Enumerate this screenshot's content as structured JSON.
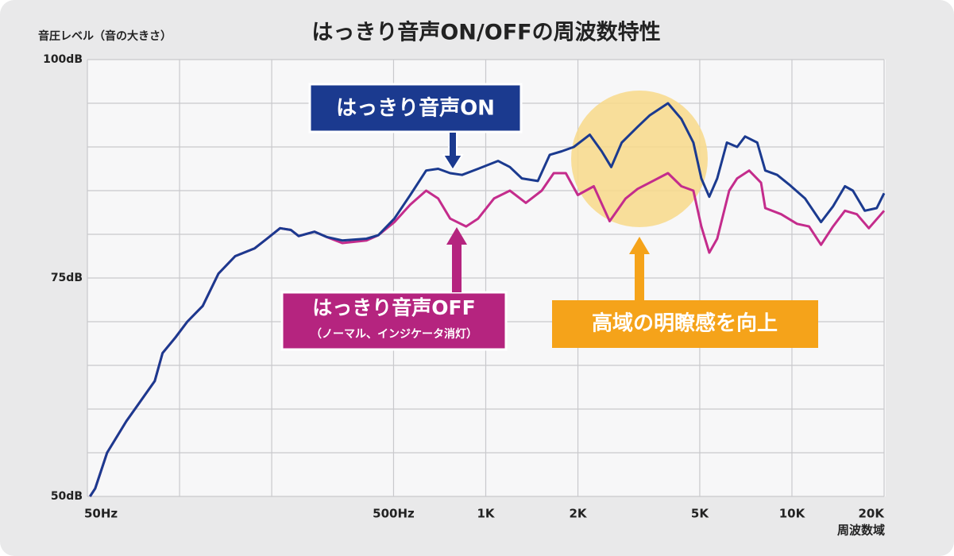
{
  "chart_data": {
    "type": "line",
    "title": "はっきり音声ON/OFFの周波数特性",
    "y_label": "音圧レベル（音の大きさ）",
    "x_label": "周波数域",
    "log_x": true,
    "grid": true,
    "xlim": [
      50,
      20000
    ],
    "ylim": [
      50,
      100
    ],
    "xticks": [
      {
        "value": 50,
        "label": "50Hz"
      },
      {
        "value": 500,
        "label": "500Hz"
      },
      {
        "value": 1000,
        "label": "1K"
      },
      {
        "value": 2000,
        "label": "2K"
      },
      {
        "value": 5000,
        "label": "5K"
      },
      {
        "value": 10000,
        "label": "10K"
      },
      {
        "value": 20000,
        "label": "20K"
      }
    ],
    "x_minor_grid": [
      100,
      200
    ],
    "yticks": [
      {
        "value": 50,
        "label": "50dB"
      },
      {
        "value": 75,
        "label": "75dB"
      },
      {
        "value": 100,
        "label": "100dB"
      }
    ],
    "y_minor_grid": [
      55,
      60,
      65,
      70,
      80,
      85,
      90,
      95
    ],
    "series": [
      {
        "name": "はっきり音声ON",
        "color": "#1b3a8f",
        "x": [
          51,
          53,
          58,
          67,
          83,
          88,
          97,
          106,
          119,
          134,
          152,
          176,
          193,
          213,
          231,
          245,
          276,
          302,
          340,
          408,
          446,
          503,
          567,
          639,
          699,
          765,
          837,
          944,
          1097,
          1199,
          1312,
          1480,
          1618,
          1770,
          1940,
          2187,
          2392,
          2570,
          2780,
          3134,
          3427,
          3936,
          4355,
          4765,
          5060,
          5370,
          5700,
          6134,
          6624,
          7031,
          7704,
          8181,
          8953,
          9790,
          11040,
          12446,
          13620,
          14895,
          15811,
          17298,
          18919,
          20000
        ],
        "values": [
          50.0,
          50.9,
          55.0,
          58.6,
          63.2,
          66.4,
          68.2,
          70.0,
          71.8,
          75.5,
          77.5,
          78.4,
          79.5,
          80.7,
          80.5,
          79.8,
          80.3,
          79.7,
          79.3,
          79.5,
          79.9,
          81.8,
          84.5,
          87.3,
          87.5,
          87.0,
          86.8,
          87.5,
          88.4,
          87.7,
          86.4,
          86.1,
          89.1,
          89.5,
          90.0,
          91.4,
          89.5,
          87.7,
          90.5,
          92.3,
          93.6,
          95.0,
          93.2,
          90.5,
          86.4,
          84.3,
          86.4,
          90.5,
          90.0,
          91.2,
          90.5,
          87.3,
          86.8,
          85.7,
          84.1,
          81.4,
          83.2,
          85.5,
          85.0,
          82.7,
          83.0,
          84.7
        ]
      },
      {
        "name": "はっきり音声OFF",
        "sublabel": "（ノーマル、インジケータ消灯）",
        "color": "#c42c8c",
        "x": [
          51,
          53,
          58,
          67,
          83,
          88,
          97,
          106,
          119,
          134,
          152,
          176,
          193,
          213,
          231,
          245,
          276,
          302,
          340,
          408,
          446,
          503,
          567,
          639,
          699,
          765,
          863,
          944,
          1064,
          1199,
          1352,
          1524,
          1668,
          1826,
          1998,
          2253,
          2540,
          2864,
          3134,
          3427,
          3936,
          4355,
          4765,
          5060,
          5370,
          5700,
          6240,
          6624,
          7250,
          7930,
          8181,
          9220,
          10390,
          11370,
          12446,
          13620,
          14895,
          16290,
          17830,
          20000
        ],
        "values": [
          50.0,
          50.9,
          55.0,
          58.6,
          63.2,
          66.4,
          68.2,
          70.0,
          71.8,
          75.5,
          77.5,
          78.4,
          79.5,
          80.7,
          80.5,
          79.8,
          80.3,
          79.7,
          79.0,
          79.3,
          79.9,
          81.4,
          83.4,
          85.0,
          84.1,
          81.8,
          80.9,
          81.8,
          84.1,
          85.0,
          83.6,
          85.0,
          87.0,
          87.0,
          84.5,
          85.5,
          81.5,
          84.1,
          85.2,
          85.9,
          87.0,
          85.5,
          85.0,
          80.9,
          77.9,
          79.5,
          85.0,
          86.4,
          87.3,
          85.9,
          83.0,
          82.3,
          81.2,
          80.9,
          78.8,
          80.9,
          82.7,
          82.3,
          80.7,
          82.7
        ]
      }
    ],
    "annotations": [
      {
        "text": "高域の明瞭感を向上"
      }
    ]
  }
}
